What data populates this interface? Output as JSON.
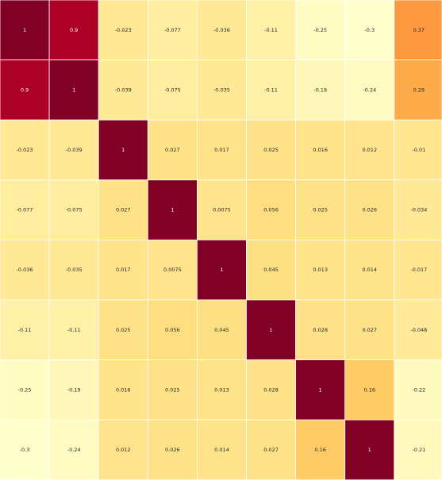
{
  "chart_data": {
    "type": "heatmap",
    "colormap": "YlOrRd",
    "vmin": -0.3,
    "vmax": 1,
    "grid": true,
    "legend": "none",
    "visible_columns": 9,
    "visible_rows": 8,
    "rows": [
      {
        "values": [
          1,
          0.9,
          -0.023,
          -0.077,
          -0.036,
          -0.11,
          -0.25,
          -0.3,
          0.37
        ],
        "labels": [
          "1",
          "0.9",
          "-0.023",
          "-0.077",
          "-0.036",
          "-0.11",
          "-0.25",
          "-0.3",
          "0.37"
        ]
      },
      {
        "values": [
          0.9,
          1,
          -0.039,
          -0.075,
          -0.035,
          -0.11,
          -0.19,
          -0.24,
          0.29
        ],
        "labels": [
          "0.9",
          "1",
          "-0.039",
          "-0.075",
          "-0.035",
          "-0.11",
          "-0.19",
          "-0.24",
          "0.29"
        ]
      },
      {
        "values": [
          -0.023,
          -0.039,
          1,
          0.027,
          0.017,
          0.025,
          0.016,
          0.012,
          -0.01
        ],
        "labels": [
          "-0.023",
          "-0.039",
          "1",
          "0.027",
          "0.017",
          "0.025",
          "0.016",
          "0.012",
          "-0.01"
        ]
      },
      {
        "values": [
          -0.077,
          -0.075,
          0.027,
          1,
          0.0075,
          0.056,
          0.025,
          0.026,
          -0.034
        ],
        "labels": [
          "-0.077",
          "-0.075",
          "0.027",
          "1",
          "0.0075",
          "0.056",
          "0.025",
          "0.026",
          "-0.034"
        ]
      },
      {
        "values": [
          -0.036,
          -0.035,
          0.017,
          0.0075,
          1,
          0.045,
          0.013,
          0.014,
          -0.017
        ],
        "labels": [
          "-0.036",
          "-0.035",
          "0.017",
          "0.0075",
          "1",
          "0.045",
          "0.013",
          "0.014",
          "-0.017"
        ]
      },
      {
        "values": [
          -0.11,
          -0.11,
          0.025,
          0.056,
          0.045,
          1,
          0.028,
          0.027,
          -0.048
        ],
        "labels": [
          "-0.11",
          "-0.11",
          "0.025",
          "0.056",
          "0.045",
          "1",
          "0.028",
          "0.027",
          "-0.048"
        ]
      },
      {
        "values": [
          -0.25,
          -0.19,
          0.016,
          0.025,
          0.013,
          0.028,
          1,
          0.16,
          -0.22
        ],
        "labels": [
          "-0.25",
          "-0.19",
          "0.016",
          "0.025",
          "0.013",
          "0.028",
          "1",
          "0.16",
          "-0.22"
        ]
      },
      {
        "values": [
          -0.3,
          -0.24,
          0.012,
          0.026,
          0.014,
          0.027,
          0.16,
          1,
          -0.21
        ],
        "labels": [
          "-0.3",
          "-0.24",
          "0.012",
          "0.026",
          "0.014",
          "0.027",
          "0.16",
          "1",
          "-0.21"
        ]
      }
    ]
  }
}
